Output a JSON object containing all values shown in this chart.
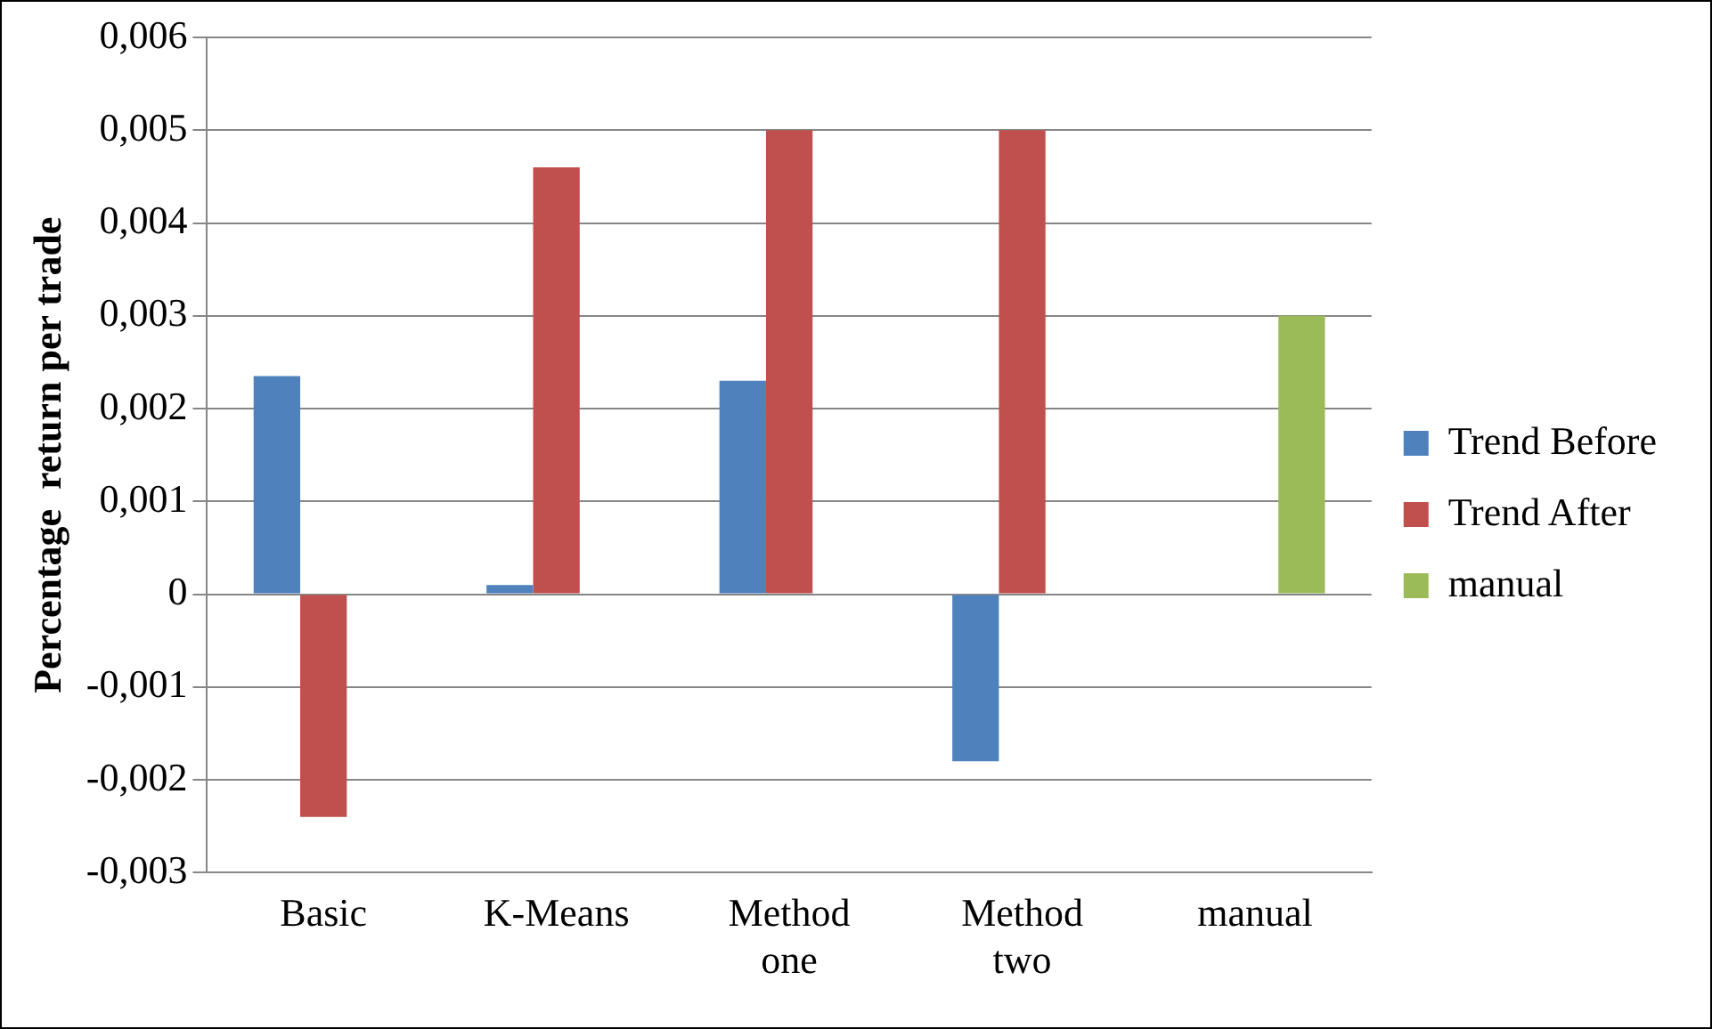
{
  "chart_data": {
    "type": "bar",
    "ylabel": "Percentage  return per trade",
    "categories": [
      "Basic",
      "K-Means",
      "Method one",
      "Method two",
      "manual"
    ],
    "series": [
      {
        "name": "Trend Before",
        "color": "#4f81bd",
        "values": [
          0.00235,
          0.0001,
          0.0023,
          -0.0018,
          null
        ]
      },
      {
        "name": "Trend After",
        "color": "#c0504d",
        "values": [
          -0.0024,
          0.0046,
          0.005,
          0.005,
          null
        ]
      },
      {
        "name": "manual",
        "color": "#9bbb59",
        "values": [
          null,
          null,
          null,
          null,
          0.003
        ]
      }
    ],
    "ylim": [
      -0.003,
      0.006
    ],
    "yticks": [
      {
        "value": -0.003,
        "label": "-0,003"
      },
      {
        "value": -0.002,
        "label": "-0,002"
      },
      {
        "value": -0.001,
        "label": "-0,001"
      },
      0,
      {
        "value": 0.001,
        "label": "0,001"
      },
      {
        "value": 0.002,
        "label": "0,002"
      },
      {
        "value": 0.003,
        "label": "0,003"
      },
      {
        "value": 0.004,
        "label": "0,004"
      },
      {
        "value": 0.005,
        "label": "0,005"
      },
      {
        "value": 0.006,
        "label": "0,006"
      }
    ],
    "grid": "y",
    "legend": "right"
  }
}
